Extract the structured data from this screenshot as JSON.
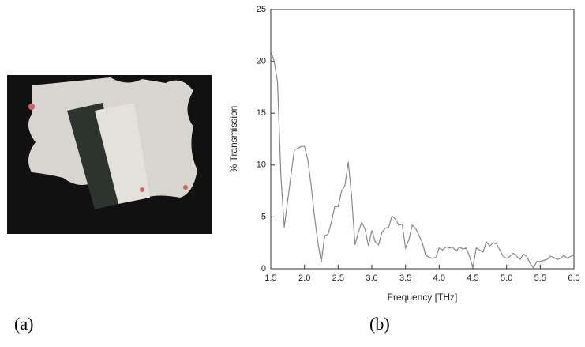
{
  "panel_labels": [
    "(a)",
    "(b)"
  ],
  "chart_data": {
    "type": "line",
    "xlabel": "Frequency [THz]",
    "ylabel": "% Transmission",
    "x": [
      1.5,
      1.55,
      1.6,
      1.65,
      1.7,
      1.75,
      1.8,
      1.85,
      1.9,
      1.95,
      2.0,
      2.05,
      2.1,
      2.15,
      2.2,
      2.25,
      2.3,
      2.35,
      2.4,
      2.45,
      2.5,
      2.55,
      2.6,
      2.65,
      2.7,
      2.75,
      2.8,
      2.85,
      2.9,
      2.95,
      3.0,
      3.05,
      3.1,
      3.15,
      3.2,
      3.25,
      3.3,
      3.35,
      3.4,
      3.45,
      3.5,
      3.55,
      3.6,
      3.65,
      3.7,
      3.75,
      3.8,
      3.85,
      3.9,
      3.95,
      4.0,
      4.05,
      4.1,
      4.15,
      4.2,
      4.25,
      4.3,
      4.35,
      4.4,
      4.45,
      4.5,
      4.55,
      4.6,
      4.65,
      4.7,
      4.75,
      4.8,
      4.85,
      4.9,
      4.95,
      5.0,
      5.05,
      5.1,
      5.15,
      5.2,
      5.25,
      5.3,
      5.35,
      5.4,
      5.45,
      5.5,
      5.55,
      5.6,
      5.65,
      5.7,
      5.75,
      5.8,
      5.85,
      5.9,
      5.95,
      6.0
    ],
    "values": [
      21,
      20,
      18,
      9,
      4,
      6.5,
      9,
      11.5,
      11.6,
      11.8,
      11.8,
      10.5,
      8,
      5,
      2.5,
      0.6,
      3.2,
      3.3,
      4.5,
      6,
      6,
      7.5,
      8,
      10.3,
      7,
      2.3,
      3.5,
      4.5,
      3.8,
      2.2,
      3.7,
      2.6,
      2.3,
      3.5,
      3.9,
      4,
      5.1,
      4.8,
      4.2,
      4.3,
      2,
      2.8,
      4.2,
      3.9,
      3.2,
      2.5,
      1.3,
      1.1,
      1,
      1.1,
      2,
      1.8,
      2.1,
      2,
      2.1,
      1.7,
      2.1,
      1.9,
      2,
      1.2,
      0.1,
      2,
      1.8,
      1.6,
      2.6,
      2.2,
      2.5,
      2.4,
      1.8,
      1.2,
      1,
      1.2,
      1.5,
      1.2,
      0.9,
      1.4,
      1.2,
      0.5,
      0.1,
      0.7,
      0.7,
      0.8,
      0.9,
      1.2,
      1.1,
      0.9,
      1,
      1.3,
      1,
      1.2,
      1.3
    ],
    "color": "#888888",
    "xlim": [
      1.5,
      6.0
    ],
    "xticks": [
      1.5,
      {
        "value": 2,
        "label": "2.0"
      },
      2.5,
      {
        "value": 3,
        "label": "3.0"
      },
      3.5,
      {
        "value": 4,
        "label": "4.0"
      },
      4.5,
      {
        "value": 5,
        "label": "5.0"
      },
      5.5,
      {
        "value": 6,
        "label": "6.0"
      }
    ],
    "ylim": [
      0,
      25
    ],
    "yticks": [
      0,
      5,
      10,
      15,
      20,
      25
    ]
  }
}
